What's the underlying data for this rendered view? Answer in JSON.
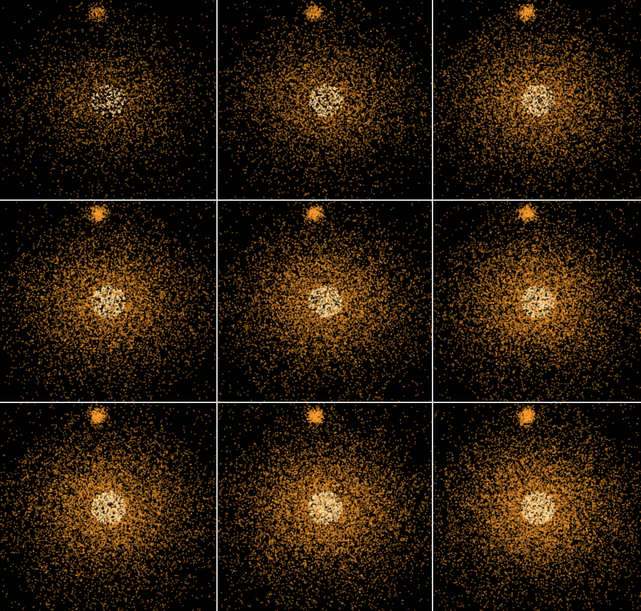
{
  "figure": {
    "rows": 3,
    "cols": 3,
    "background_color": "#000000",
    "divider_color": "#d9d9d9",
    "point_color": "#ffa033",
    "core_color": "#ffe3a8"
  },
  "panels": [
    {
      "brightness": 0.35
    },
    {
      "brightness": 0.55
    },
    {
      "brightness": 0.7
    },
    {
      "brightness": 0.75
    },
    {
      "brightness": 0.8
    },
    {
      "brightness": 0.85
    },
    {
      "brightness": 0.9
    },
    {
      "brightness": 0.95
    },
    {
      "brightness": 1.0
    }
  ]
}
